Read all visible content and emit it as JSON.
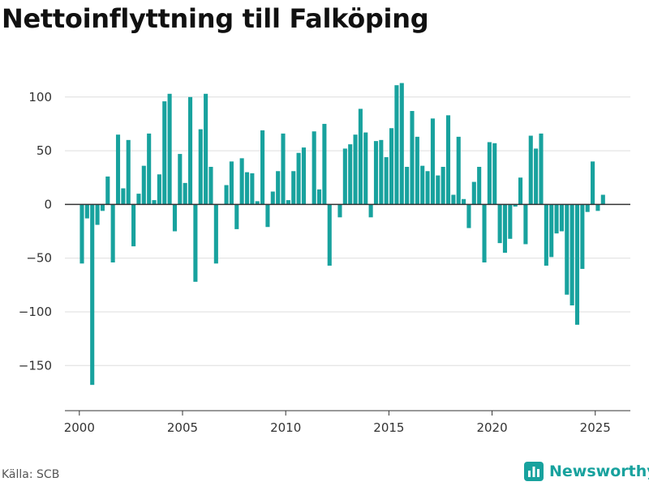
{
  "chart_data": {
    "type": "bar",
    "title": "Nettoinflyttning till Falköping",
    "xlabel": "",
    "ylabel": "",
    "color": "#18a29e",
    "grid": true,
    "xlim": [
      1999.3,
      2026.7
    ],
    "ylim": [
      -192,
      130
    ],
    "y_ticks": [
      100,
      50,
      0,
      -50,
      -100,
      -150
    ],
    "y_tick_labels": [
      "100",
      "50",
      "0",
      "−50",
      "−100",
      "−150"
    ],
    "x_ticks": [
      2000,
      2005,
      2010,
      2015,
      2020,
      2025
    ],
    "x_tick_labels": [
      "2000",
      "2005",
      "2010",
      "2015",
      "2020",
      "2025"
    ],
    "x": [
      2000.125,
      2000.375,
      2000.625,
      2000.875,
      2001.125,
      2001.375,
      2001.625,
      2001.875,
      2002.125,
      2002.375,
      2002.625,
      2002.875,
      2003.125,
      2003.375,
      2003.625,
      2003.875,
      2004.125,
      2004.375,
      2004.625,
      2004.875,
      2005.125,
      2005.375,
      2005.625,
      2005.875,
      2006.125,
      2006.375,
      2006.625,
      2006.875,
      2007.125,
      2007.375,
      2007.625,
      2007.875,
      2008.125,
      2008.375,
      2008.625,
      2008.875,
      2009.125,
      2009.375,
      2009.625,
      2009.875,
      2010.125,
      2010.375,
      2010.625,
      2010.875,
      2011.125,
      2011.375,
      2011.625,
      2011.875,
      2012.125,
      2012.375,
      2012.625,
      2012.875,
      2013.125,
      2013.375,
      2013.625,
      2013.875,
      2014.125,
      2014.375,
      2014.625,
      2014.875,
      2015.125,
      2015.375,
      2015.625,
      2015.875,
      2016.125,
      2016.375,
      2016.625,
      2016.875,
      2017.125,
      2017.375,
      2017.625,
      2017.875,
      2018.125,
      2018.375,
      2018.625,
      2018.875,
      2019.125,
      2019.375,
      2019.625,
      2019.875,
      2020.125,
      2020.375,
      2020.625,
      2020.875,
      2021.125,
      2021.375,
      2021.625,
      2021.875,
      2022.125,
      2022.375,
      2022.625,
      2022.875,
      2023.125,
      2023.375,
      2023.625,
      2023.875,
      2024.125,
      2024.375,
      2024.625,
      2024.875,
      2025.125,
      2025.375
    ],
    "values": [
      -55,
      -13,
      -168,
      -19,
      -6,
      26,
      -54,
      65,
      15,
      60,
      -39,
      10,
      36,
      66,
      4,
      28,
      96,
      103,
      -25,
      47,
      20,
      100,
      -72,
      70,
      103,
      35,
      -55,
      0,
      18,
      40,
      -23,
      43,
      30,
      29,
      3,
      69,
      -21,
      12,
      31,
      66,
      4,
      31,
      48,
      53,
      0,
      68,
      14,
      75,
      -57,
      0,
      -12,
      52,
      56,
      65,
      89,
      67,
      -12,
      59,
      60,
      44,
      71,
      111,
      113,
      35,
      87,
      63,
      36,
      31,
      80,
      27,
      35,
      83,
      9,
      63,
      5,
      -22,
      21,
      35,
      -54,
      58,
      57,
      -36,
      -45,
      -32,
      -2,
      25,
      -37,
      64,
      52,
      66,
      -57,
      -49,
      -27,
      -25,
      -84,
      -94,
      -112,
      -60,
      -7,
      40,
      -6,
      9
    ]
  },
  "footer": {
    "source": "Källa: SCB",
    "brand": "Newsworthy"
  }
}
